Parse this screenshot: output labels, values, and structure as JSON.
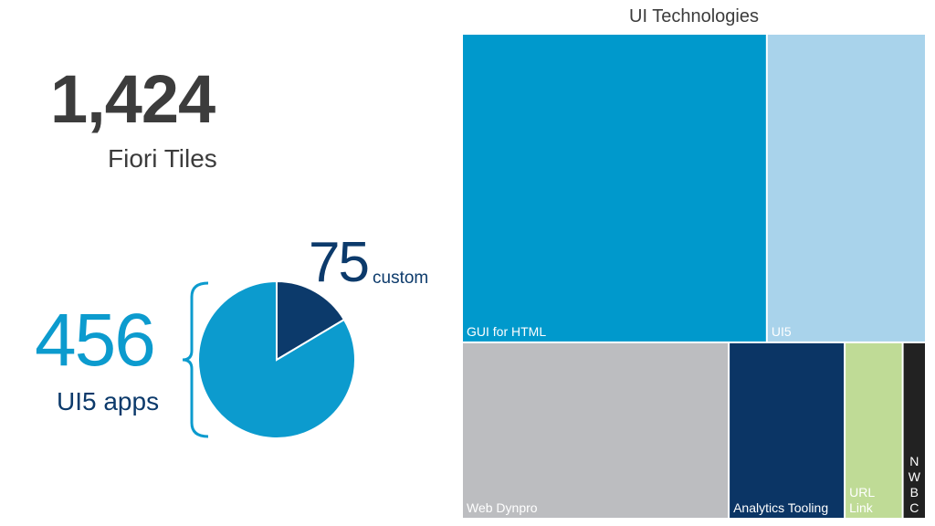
{
  "summary": {
    "total_value": "1,424",
    "total_label": "Fiori Tiles",
    "ui5_value": "456",
    "ui5_label": "UI5 apps",
    "custom_value": "75",
    "custom_label": "custom"
  },
  "chart_data": [
    {
      "type": "pie",
      "title": "",
      "slices": [
        {
          "label": "custom",
          "value": 75,
          "color": "#0c3a6b"
        },
        {
          "label": "other UI5 apps",
          "value": 381,
          "color": "#0c9bce"
        }
      ],
      "total": 456
    },
    {
      "type": "treemap",
      "title": "UI Technologies",
      "items": [
        {
          "label": "GUI for HTML",
          "value": 460,
          "color": "#0099cc"
        },
        {
          "label": "UI5",
          "value": 240,
          "color": "#a9d3eb"
        },
        {
          "label": "Web Dynpro",
          "value": 230,
          "color": "#bcbdc0"
        },
        {
          "label": "Analytics Tooling",
          "value": 100,
          "color": "#0b3565"
        },
        {
          "label": "URL Link",
          "value": 50,
          "color": "#bfdb96"
        },
        {
          "label": "NWBC",
          "value": 20,
          "color": "#222222"
        }
      ]
    }
  ]
}
